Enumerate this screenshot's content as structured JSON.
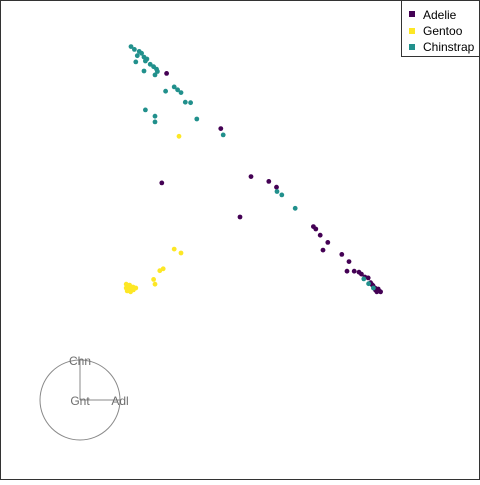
{
  "chart_data": {
    "type": "scatter",
    "legend_position": "top-right",
    "axis_frame": true,
    "grid": false,
    "x_range": [
      0,
      1
    ],
    "y_range": [
      0,
      1
    ],
    "series": [
      {
        "name": "Adelie",
        "color": "#440154",
        "points": [
          [
            0.347,
            0.847
          ],
          [
            0.46,
            0.732
          ],
          [
            0.337,
            0.619
          ],
          [
            0.523,
            0.632
          ],
          [
            0.56,
            0.622
          ],
          [
            0.576,
            0.61
          ],
          [
            0.5,
            0.548
          ],
          [
            0.653,
            0.528
          ],
          [
            0.658,
            0.523
          ],
          [
            0.667,
            0.51
          ],
          [
            0.683,
            0.495
          ],
          [
            0.673,
            0.479
          ],
          [
            0.712,
            0.47
          ],
          [
            0.727,
            0.455
          ],
          [
            0.723,
            0.435
          ],
          [
            0.738,
            0.435
          ],
          [
            0.748,
            0.433
          ],
          [
            0.753,
            0.429
          ],
          [
            0.76,
            0.423
          ],
          [
            0.767,
            0.421
          ],
          [
            0.772,
            0.411
          ],
          [
            0.777,
            0.405
          ],
          [
            0.781,
            0.4
          ],
          [
            0.786,
            0.396
          ],
          [
            0.79,
            0.394
          ],
          [
            0.793,
            0.392
          ],
          [
            0.788,
            0.398
          ],
          [
            0.782,
            0.396
          ],
          [
            0.775,
            0.407
          ],
          [
            0.785,
            0.392
          ]
        ]
      },
      {
        "name": "Gentoo",
        "color": "#fde725",
        "points": [
          [
            0.373,
            0.716
          ],
          [
            0.363,
            0.481
          ],
          [
            0.377,
            0.473
          ],
          [
            0.333,
            0.436
          ],
          [
            0.34,
            0.44
          ],
          [
            0.32,
            0.418
          ],
          [
            0.323,
            0.408
          ],
          [
            0.263,
            0.408
          ],
          [
            0.27,
            0.406
          ],
          [
            0.277,
            0.402
          ],
          [
            0.283,
            0.4
          ],
          [
            0.263,
            0.4
          ],
          [
            0.27,
            0.398
          ],
          [
            0.278,
            0.396
          ],
          [
            0.265,
            0.394
          ],
          [
            0.272,
            0.392
          ]
        ]
      },
      {
        "name": "Chinstrap",
        "color": "#21908c",
        "points": [
          [
            0.273,
            0.903
          ],
          [
            0.28,
            0.897
          ],
          [
            0.29,
            0.893
          ],
          [
            0.295,
            0.889
          ],
          [
            0.286,
            0.884
          ],
          [
            0.3,
            0.881
          ],
          [
            0.306,
            0.877
          ],
          [
            0.303,
            0.873
          ],
          [
            0.313,
            0.866
          ],
          [
            0.32,
            0.861
          ],
          [
            0.326,
            0.856
          ],
          [
            0.328,
            0.851
          ],
          [
            0.283,
            0.871
          ],
          [
            0.3,
            0.852
          ],
          [
            0.323,
            0.844
          ],
          [
            0.363,
            0.819
          ],
          [
            0.37,
            0.813
          ],
          [
            0.377,
            0.807
          ],
          [
            0.345,
            0.81
          ],
          [
            0.386,
            0.787
          ],
          [
            0.397,
            0.786
          ],
          [
            0.303,
            0.771
          ],
          [
            0.323,
            0.758
          ],
          [
            0.323,
            0.746
          ],
          [
            0.41,
            0.752
          ],
          [
            0.465,
            0.719
          ],
          [
            0.577,
            0.601
          ],
          [
            0.587,
            0.594
          ],
          [
            0.615,
            0.566
          ],
          [
            0.758,
            0.419
          ],
          [
            0.768,
            0.409
          ],
          [
            0.778,
            0.4
          ]
        ]
      }
    ],
    "legend": [
      {
        "label": "Adelie",
        "color": "#440154"
      },
      {
        "label": "Gentoo",
        "color": "#fde725"
      },
      {
        "label": "Chinstrap",
        "color": "#21908c"
      }
    ],
    "radar_key": {
      "labels": {
        "top": "Chn",
        "center": "Gnt",
        "right": "Adl"
      }
    }
  }
}
